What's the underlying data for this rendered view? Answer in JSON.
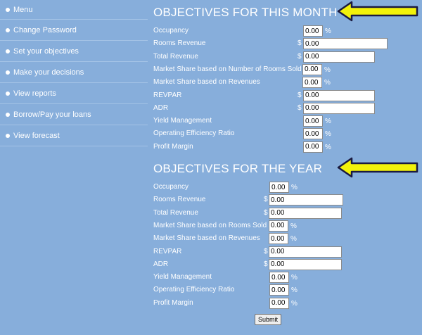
{
  "sidebar": {
    "items": [
      {
        "label": "Menu"
      },
      {
        "label": "Change Password"
      },
      {
        "label": "Set your objectives"
      },
      {
        "label": "Make your decisions"
      },
      {
        "label": "View reports"
      },
      {
        "label": "Borrow/Pay your loans"
      },
      {
        "label": "View forecast"
      }
    ]
  },
  "month": {
    "title": "OBJECTIVES FOR THIS MONTH",
    "rows": [
      {
        "label": "Occupancy",
        "value": "0.00",
        "prefix": "",
        "suffix": "%"
      },
      {
        "label": "Rooms Revenue",
        "value": "0.00",
        "prefix": "$",
        "suffix": ""
      },
      {
        "label": "Total Revenue",
        "value": "0.00",
        "prefix": "$",
        "suffix": ""
      },
      {
        "label": "Market Share based on Number of Rooms Sold",
        "value": "0.00",
        "prefix": "",
        "suffix": "%"
      },
      {
        "label": "Market Share based on Revenues",
        "value": "0.00",
        "prefix": "",
        "suffix": "%"
      },
      {
        "label": "REVPAR",
        "value": "0.00",
        "prefix": "$",
        "suffix": ""
      },
      {
        "label": "ADR",
        "value": "0.00",
        "prefix": "$",
        "suffix": ""
      },
      {
        "label": "Yield Management",
        "value": "0.00",
        "prefix": "",
        "suffix": "%"
      },
      {
        "label": "Operating Efficiency Ratio",
        "value": "0.00",
        "prefix": "",
        "suffix": "%"
      },
      {
        "label": "Profit Margin",
        "value": "0.00",
        "prefix": "",
        "suffix": "%"
      }
    ]
  },
  "year": {
    "title": "OBJECTIVES FOR THE YEAR",
    "rows": [
      {
        "label": "Occupancy",
        "value": "0.00",
        "prefix": "",
        "suffix": "%"
      },
      {
        "label": "Rooms Revenue",
        "value": "0.00",
        "prefix": "$",
        "suffix": ""
      },
      {
        "label": "Total Revenue",
        "value": "0.00",
        "prefix": "$",
        "suffix": ""
      },
      {
        "label": "Market Share based on Rooms Sold",
        "value": "0.00",
        "prefix": "",
        "suffix": "%"
      },
      {
        "label": "Market Share based on Revenues",
        "value": "0.00",
        "prefix": "",
        "suffix": "%"
      },
      {
        "label": "REVPAR",
        "value": "0.00",
        "prefix": "$",
        "suffix": ""
      },
      {
        "label": "ADR",
        "value": "0.00",
        "prefix": "$",
        "suffix": ""
      },
      {
        "label": "Yield Management",
        "value": "0.00",
        "prefix": "",
        "suffix": "%"
      },
      {
        "label": "Operating Efficiency Ratio",
        "value": "0.00",
        "prefix": "",
        "suffix": "%"
      },
      {
        "label": "Profit Margin",
        "value": "0.00",
        "prefix": "",
        "suffix": "%"
      }
    ]
  },
  "submit_label": "Submit",
  "colors": {
    "background": "#87aedb",
    "arrow_fill": "#f2f20a",
    "arrow_stroke": "#1a1a40"
  },
  "icons": {
    "arrow": "left-arrow-icon",
    "bullet": "bullet-icon"
  }
}
